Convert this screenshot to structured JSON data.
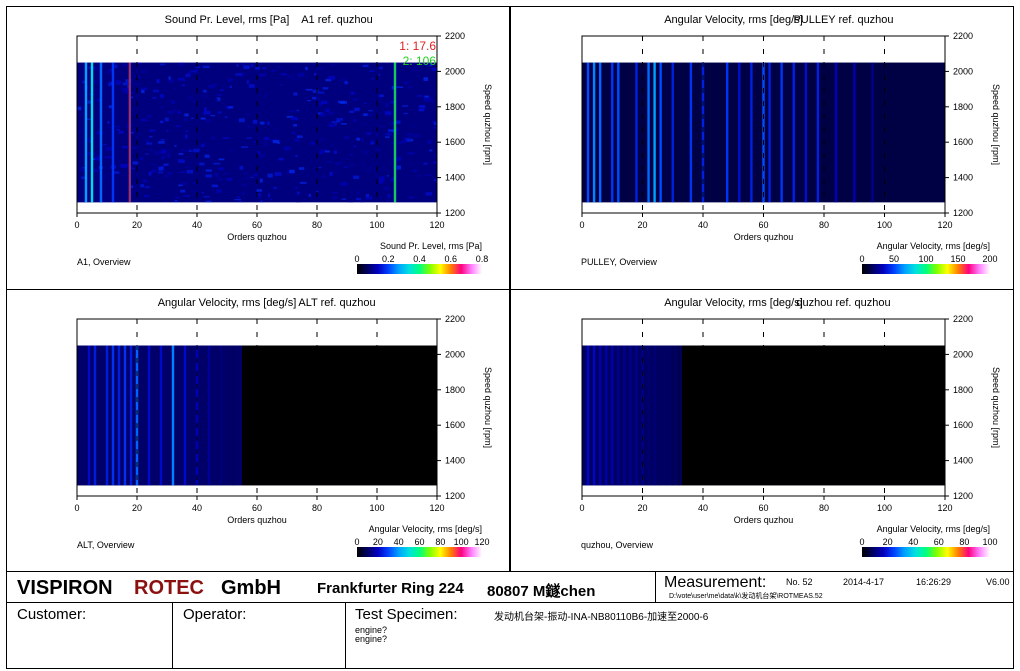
{
  "colors": {
    "brand_red": "#8b1010",
    "cursor1": "#e02020",
    "cursor2": "#20d020",
    "map_background": "#000000",
    "map_low": "#0010c0"
  },
  "colormap": [
    "#000000",
    "#000060",
    "#0000c0",
    "#0040ff",
    "#00a0ff",
    "#00e0e0",
    "#00ff80",
    "#80ff00",
    "#ffff00",
    "#ff8000",
    "#ff0080",
    "#ff80ff",
    "#ffffff"
  ],
  "chart_data": [
    {
      "type": "heatmap",
      "title": "Sound Pr. Level, rms [Pa]",
      "reference": "A1 ref. quzhou",
      "xlabel": "Orders quzhou",
      "ylabel": "Speed quzhou [rpm]",
      "xlim": [
        0,
        120
      ],
      "ylim": [
        1200,
        2200
      ],
      "x_ticks": [
        "0",
        "20",
        "40",
        "60",
        "80",
        "100",
        "120"
      ],
      "y_ticks": [
        "1200",
        "1400",
        "1600",
        "1800",
        "2000",
        "2200"
      ],
      "data_x_range": [
        0,
        120
      ],
      "data_y_range": [
        1260,
        2050
      ],
      "colorbar_label": "Sound Pr. Level, rms [Pa]",
      "colorbar_ticks": [
        "0",
        "0.2",
        "0.4",
        "0.6",
        "0.8"
      ],
      "overview_label": "A1, Overview",
      "cursors": [
        {
          "label": "1: 17.6",
          "x": 17.6,
          "color": "#e02020"
        },
        {
          "label": "2: 106",
          "x": 106,
          "color": "#20d020"
        }
      ],
      "order_lines": [
        {
          "order": 3,
          "level": 0.45
        },
        {
          "order": 5,
          "level": 0.6
        },
        {
          "order": 8,
          "level": 0.35
        },
        {
          "order": 12,
          "level": 0.25
        },
        {
          "order": 17.6,
          "level": 0.3
        },
        {
          "order": 106,
          "level": 0.5
        }
      ],
      "base_level": 0.22,
      "speckle": true
    },
    {
      "type": "heatmap",
      "title": "Angular Velocity, rms [deg/s]",
      "reference": "PULLEY ref. quzhou",
      "xlabel": "Orders quzhou",
      "ylabel": "Speed quzhou [rpm]",
      "xlim": [
        0,
        120
      ],
      "ylim": [
        1200,
        2200
      ],
      "x_ticks": [
        "0",
        "20",
        "40",
        "60",
        "80",
        "100",
        "120"
      ],
      "y_ticks": [
        "1200",
        "1400",
        "1600",
        "1800",
        "2000",
        "2200"
      ],
      "data_x_range": [
        0,
        120
      ],
      "data_y_range": [
        1260,
        2050
      ],
      "colorbar_label": "Angular Velocity, rms [deg/s]",
      "colorbar_ticks": [
        "0",
        "50",
        "100",
        "150",
        "200"
      ],
      "overview_label": "PULLEY, Overview",
      "cursors": [],
      "order_lines": [
        {
          "order": 2,
          "level": 0.4
        },
        {
          "order": 4,
          "level": 0.5
        },
        {
          "order": 6,
          "level": 0.45
        },
        {
          "order": 10,
          "level": 0.35
        },
        {
          "order": 12,
          "level": 0.4
        },
        {
          "order": 18,
          "level": 0.3
        },
        {
          "order": 22,
          "level": 0.45
        },
        {
          "order": 24,
          "level": 0.55
        },
        {
          "order": 26,
          "level": 0.4
        },
        {
          "order": 30,
          "level": 0.3
        },
        {
          "order": 36,
          "level": 0.35
        },
        {
          "order": 40,
          "level": 0.3
        },
        {
          "order": 48,
          "level": 0.35
        },
        {
          "order": 52,
          "level": 0.25
        },
        {
          "order": 56,
          "level": 0.3
        },
        {
          "order": 60,
          "level": 0.4
        },
        {
          "order": 62,
          "level": 0.3
        },
        {
          "order": 66,
          "level": 0.35
        },
        {
          "order": 70,
          "level": 0.3
        },
        {
          "order": 74,
          "level": 0.25
        },
        {
          "order": 78,
          "level": 0.3
        },
        {
          "order": 84,
          "level": 0.2
        },
        {
          "order": 90,
          "level": 0.18
        },
        {
          "order": 96,
          "level": 0.12
        }
      ],
      "base_level": 0.12,
      "speckle": false
    },
    {
      "type": "heatmap",
      "title": "Angular Velocity, rms [deg/s]",
      "reference": "ALT ref. quzhou",
      "xlabel": "Orders quzhou",
      "ylabel": "Speed quzhou [rpm]",
      "xlim": [
        0,
        120
      ],
      "ylim": [
        1200,
        2200
      ],
      "x_ticks": [
        "0",
        "20",
        "40",
        "60",
        "80",
        "100",
        "120"
      ],
      "y_ticks": [
        "1200",
        "1400",
        "1600",
        "1800",
        "2000",
        "2200"
      ],
      "data_x_range": [
        0,
        120
      ],
      "data_y_range": [
        1260,
        2050
      ],
      "colorbar_label": "Angular Velocity, rms [deg/s]",
      "colorbar_ticks": [
        "0",
        "20",
        "40",
        "60",
        "80",
        "100",
        "120"
      ],
      "overview_label": "ALT, Overview",
      "cursors": [],
      "order_lines": [
        {
          "order": 4,
          "level": 0.3
        },
        {
          "order": 6,
          "level": 0.35
        },
        {
          "order": 10,
          "level": 0.35
        },
        {
          "order": 12,
          "level": 0.4
        },
        {
          "order": 14,
          "level": 0.35
        },
        {
          "order": 16,
          "level": 0.4
        },
        {
          "order": 18,
          "level": 0.35
        },
        {
          "order": 20,
          "level": 0.5
        },
        {
          "order": 24,
          "level": 0.3
        },
        {
          "order": 28,
          "level": 0.3
        },
        {
          "order": 32,
          "level": 0.55
        },
        {
          "order": 36,
          "level": 0.3
        },
        {
          "order": 40,
          "level": 0.25
        },
        {
          "order": 44,
          "level": 0.2
        },
        {
          "order": 48,
          "level": 0.15
        },
        {
          "order": 52,
          "level": 0.1
        }
      ],
      "base_level": 0.06,
      "max_order": 55,
      "speckle": false
    },
    {
      "type": "heatmap",
      "title": "Angular Velocity, rms [deg/s]",
      "reference": "quzhou ref. quzhou",
      "xlabel": "Orders quzhou",
      "ylabel": "Speed quzhou [rpm]",
      "xlim": [
        0,
        120
      ],
      "ylim": [
        1200,
        2200
      ],
      "x_ticks": [
        "0",
        "20",
        "40",
        "60",
        "80",
        "100",
        "120"
      ],
      "y_ticks": [
        "1200",
        "1400",
        "1600",
        "1800",
        "2000",
        "2200"
      ],
      "data_x_range": [
        0,
        120
      ],
      "data_y_range": [
        1260,
        2050
      ],
      "colorbar_label": "Angular Velocity, rms [deg/s]",
      "colorbar_ticks": [
        "0",
        "20",
        "40",
        "60",
        "80",
        "100"
      ],
      "overview_label": "quzhou, Overview",
      "cursors": [],
      "order_lines": [
        {
          "order": 2,
          "level": 0.3
        },
        {
          "order": 4,
          "level": 0.3
        },
        {
          "order": 6,
          "level": 0.25
        },
        {
          "order": 8,
          "level": 0.25
        },
        {
          "order": 10,
          "level": 0.25
        },
        {
          "order": 12,
          "level": 0.2
        },
        {
          "order": 14,
          "level": 0.2
        },
        {
          "order": 16,
          "level": 0.2
        },
        {
          "order": 18,
          "level": 0.2
        },
        {
          "order": 20,
          "level": 0.18
        },
        {
          "order": 22,
          "level": 0.15
        },
        {
          "order": 24,
          "level": 0.15
        },
        {
          "order": 26,
          "level": 0.12
        },
        {
          "order": 28,
          "level": 0.12
        },
        {
          "order": 30,
          "level": 0.1
        },
        {
          "order": 32,
          "level": 0.08
        }
      ],
      "base_level": 0.05,
      "max_order": 33,
      "speckle": false
    }
  ],
  "footer": {
    "company_part1": "VISPIRON",
    "company_part2": "ROTEC",
    "company_part3": "GmbH",
    "address": "Frankfurter Ring 224",
    "city": "80807 M鐩chen",
    "measurement_label": "Measurement:",
    "measurement_no": "No. 52",
    "date": "2014-4-17",
    "time": "16:26:29",
    "version": "V6.00",
    "path": "D:\\vote\\user\\me\\data\\k\\发动机台架\\ROTMEAS.52",
    "customer_label": "Customer:",
    "operator_label": "Operator:",
    "test_specimen_label": "Test Specimen:",
    "test_specimen_value": "发动机台架-振动-INA-NB80110B6-加速至2000-6",
    "engine_line1": "engine?",
    "engine_line2": "engine?"
  }
}
